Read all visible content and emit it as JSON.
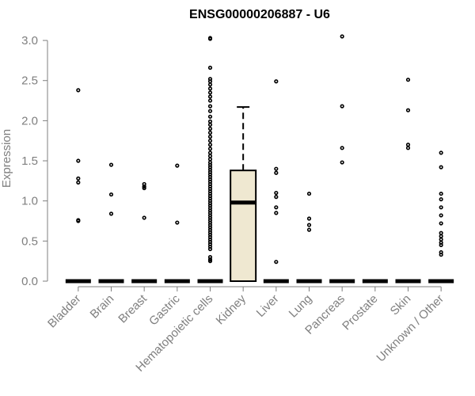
{
  "chart_data": {
    "type": "boxplot",
    "title": "ENSG00000206887 - U6",
    "ylabel": "Expression",
    "xlabel": "",
    "ylim": [
      0,
      3.05
    ],
    "yticks": [
      0.0,
      0.5,
      1.0,
      1.5,
      2.0,
      2.5,
      3.0
    ],
    "ytick_labels": [
      "0.0",
      "0.5",
      "1.0",
      "1.5",
      "2.0",
      "2.5",
      "3.0"
    ],
    "grid": false,
    "box_fill": "#efe8d1",
    "categories": [
      "Bladder",
      "Brain",
      "Breast",
      "Gastric",
      "Hematopoietic cells",
      "Kidney",
      "Liver",
      "Lung",
      "Pancreas",
      "Prostate",
      "Skin",
      "Unknown / Other"
    ],
    "series": [
      {
        "category": "Bladder",
        "q1": 0,
        "median": 0,
        "q3": 0,
        "whisker_low": 0,
        "whisker_high": 0,
        "outliers": [
          2.38,
          1.5,
          1.28,
          1.23,
          0.76,
          0.75
        ]
      },
      {
        "category": "Brain",
        "q1": 0,
        "median": 0,
        "q3": 0,
        "whisker_low": 0,
        "whisker_high": 0,
        "outliers": [
          1.45,
          1.08,
          0.84
        ]
      },
      {
        "category": "Breast",
        "q1": 0,
        "median": 0,
        "q3": 0,
        "whisker_low": 0,
        "whisker_high": 0,
        "outliers": [
          1.21,
          1.18,
          1.16,
          0.79
        ]
      },
      {
        "category": "Gastric",
        "q1": 0,
        "median": 0,
        "q3": 0,
        "whisker_low": 0,
        "whisker_high": 0,
        "outliers": [
          1.44,
          0.73
        ]
      },
      {
        "category": "Hematopoietic cells",
        "q1": 0,
        "median": 0,
        "q3": 0,
        "whisker_low": 0,
        "whisker_high": 0,
        "outliers": [
          3.03,
          3.02,
          2.66,
          2.52,
          2.49,
          2.45,
          2.4,
          2.35,
          2.3,
          2.25,
          2.18,
          2.12,
          2.05,
          1.99,
          1.95,
          1.9,
          1.85,
          1.8,
          1.75,
          1.7,
          1.65,
          1.6,
          1.56,
          1.52,
          1.48,
          1.45,
          1.42,
          1.39,
          1.36,
          1.33,
          1.3,
          1.27,
          1.24,
          1.21,
          1.18,
          1.15,
          1.12,
          1.09,
          1.06,
          1.03,
          1.0,
          0.97,
          0.94,
          0.91,
          0.88,
          0.85,
          0.82,
          0.79,
          0.76,
          0.73,
          0.7,
          0.67,
          0.64,
          0.61,
          0.58,
          0.55,
          0.52,
          0.49,
          0.46,
          0.43,
          0.4,
          0.3,
          0.27,
          0.25
        ]
      },
      {
        "category": "Kidney",
        "q1": 0,
        "median": 0.98,
        "q3": 1.38,
        "whisker_low": 0,
        "whisker_high": 2.17,
        "outliers": []
      },
      {
        "category": "Liver",
        "q1": 0,
        "median": 0,
        "q3": 0,
        "whisker_low": 0,
        "whisker_high": 0,
        "outliers": [
          2.49,
          1.4,
          1.35,
          1.1,
          1.05,
          0.92,
          0.85,
          0.24
        ]
      },
      {
        "category": "Lung",
        "q1": 0,
        "median": 0,
        "q3": 0,
        "whisker_low": 0,
        "whisker_high": 0,
        "outliers": [
          1.09,
          0.78,
          0.7,
          0.64
        ]
      },
      {
        "category": "Pancreas",
        "q1": 0,
        "median": 0,
        "q3": 0,
        "whisker_low": 0,
        "whisker_high": 0,
        "outliers": [
          3.05,
          2.18,
          1.66,
          1.48
        ]
      },
      {
        "category": "Prostate",
        "q1": 0,
        "median": 0,
        "q3": 0,
        "whisker_low": 0,
        "whisker_high": 0,
        "outliers": []
      },
      {
        "category": "Skin",
        "q1": 0,
        "median": 0,
        "q3": 0,
        "whisker_low": 0,
        "whisker_high": 0,
        "outliers": [
          2.51,
          2.13,
          1.7,
          1.66
        ]
      },
      {
        "category": "Unknown / Other",
        "q1": 0,
        "median": 0,
        "q3": 0,
        "whisker_low": 0,
        "whisker_high": 0,
        "outliers": [
          1.6,
          1.42,
          1.09,
          1.02,
          0.92,
          0.82,
          0.72,
          0.6,
          0.56,
          0.52,
          0.48,
          0.45,
          0.36,
          0.33
        ]
      }
    ]
  }
}
